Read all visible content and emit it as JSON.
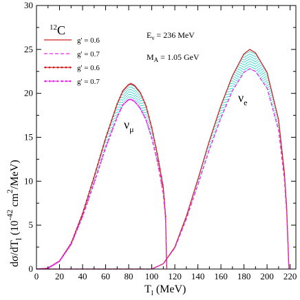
{
  "chart_data": {
    "type": "line",
    "xlabel": "T",
    "xlabel_sub": "l",
    "xlabel_unit": " (MeV)",
    "ylabel_pre": "dσ/dT",
    "ylabel_sub": "l",
    "ylabel_mid": " (10",
    "ylabel_exp": "-42",
    "ylabel_mid2": " cm",
    "ylabel_exp2": "2",
    "ylabel_post": "/MeV)",
    "xlim": [
      0,
      225
    ],
    "ylim": [
      0,
      30
    ],
    "xticks": [
      0,
      20,
      40,
      60,
      80,
      100,
      120,
      140,
      160,
      180,
      200,
      220
    ],
    "yticks": [
      0,
      5,
      10,
      15,
      20,
      25,
      30
    ],
    "target_sup": "12",
    "target": "C",
    "annotation_energy": "E",
    "annotation_energy_sub": "ν",
    "annotation_energy_val": " = 236 MeV",
    "annotation_mass": "M",
    "annotation_mass_sub": "A",
    "annotation_mass_val": " = 1.05 GeV",
    "label_numu": "ν",
    "label_numu_sub": "μ",
    "label_nue": "ν",
    "label_nue_sub": "e",
    "legend_location": "top-left",
    "fill_color": "#22cccc",
    "series": [
      {
        "name": "g' = 0.6",
        "color": "#cc2222",
        "dash": "none",
        "marker": "none",
        "group": "nue",
        "x": [
          0,
          100,
          110,
          120,
          130,
          140,
          150,
          160,
          170,
          180,
          185,
          190,
          200,
          210,
          215,
          217,
          218,
          219
        ],
        "y": [
          0,
          0,
          0.6,
          2.5,
          6.0,
          10.2,
          14.6,
          18.6,
          22.0,
          24.5,
          25.0,
          24.6,
          22.4,
          17.0,
          11.0,
          7.0,
          3.5,
          0
        ]
      },
      {
        "name": "g' = 0.7",
        "color": "#ee22ee",
        "dash": "5,3",
        "marker": "none",
        "group": "nue",
        "x": [
          0,
          100,
          110,
          120,
          130,
          140,
          150,
          160,
          170,
          180,
          185,
          190,
          200,
          210,
          215,
          217,
          218,
          219
        ],
        "y": [
          0,
          0,
          0.6,
          2.4,
          5.7,
          9.6,
          13.6,
          17.2,
          20.3,
          22.4,
          22.8,
          22.5,
          20.6,
          15.8,
          10.3,
          6.5,
          3.2,
          0
        ]
      },
      {
        "name": "g' = 0.6",
        "color": "#cc2222",
        "dash": "none",
        "marker": "dot",
        "group": "numu",
        "x": [
          0,
          10,
          20,
          30,
          40,
          50,
          60,
          70,
          75,
          80,
          82,
          85,
          90,
          95,
          100,
          105,
          110,
          112,
          113
        ],
        "y": [
          0,
          0.1,
          0.9,
          2.9,
          6.3,
          10.5,
          14.9,
          18.8,
          20.3,
          21.0,
          21.1,
          20.9,
          20.1,
          18.6,
          16.1,
          13.0,
          9.3,
          6.0,
          0
        ]
      },
      {
        "name": "g' = 0.7",
        "color": "#ee22ee",
        "dash": "5,3",
        "marker": "dot",
        "group": "numu",
        "x": [
          0,
          10,
          20,
          30,
          40,
          50,
          60,
          70,
          75,
          80,
          82,
          85,
          90,
          95,
          100,
          105,
          110,
          112,
          113
        ],
        "y": [
          0,
          0.1,
          0.9,
          2.8,
          6.0,
          9.8,
          13.8,
          17.3,
          18.7,
          19.3,
          19.3,
          19.1,
          18.3,
          17.0,
          14.9,
          12.2,
          8.6,
          5.7,
          0
        ]
      }
    ]
  }
}
